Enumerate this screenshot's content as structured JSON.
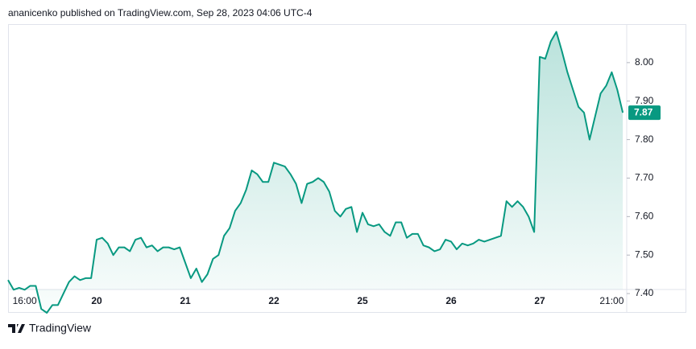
{
  "header": {
    "title": "ananicenko published on TradingView.com, Sep 28, 2023 04:06 UTC-4"
  },
  "footer": {
    "brand": "TradingView"
  },
  "chart_data": {
    "type": "area",
    "categories": [
      null,
      null,
      null,
      "16:00",
      null,
      null,
      null,
      null,
      null,
      null,
      null,
      null,
      null,
      null,
      null,
      null,
      "20",
      null,
      null,
      null,
      null,
      null,
      null,
      null,
      null,
      null,
      null,
      null,
      null,
      null,
      null,
      null,
      "21",
      null,
      null,
      null,
      null,
      null,
      null,
      null,
      null,
      null,
      null,
      null,
      null,
      null,
      null,
      null,
      "22",
      null,
      null,
      null,
      null,
      null,
      null,
      null,
      null,
      null,
      null,
      null,
      null,
      null,
      null,
      null,
      "25",
      null,
      null,
      null,
      null,
      null,
      null,
      null,
      null,
      null,
      null,
      null,
      null,
      null,
      null,
      null,
      "26",
      null,
      null,
      null,
      null,
      null,
      null,
      null,
      null,
      null,
      null,
      null,
      null,
      null,
      null,
      null,
      "27",
      null,
      null,
      null,
      null,
      null,
      null,
      null,
      null,
      null,
      null,
      null,
      null,
      "21:00",
      null,
      null
    ],
    "series": [
      {
        "color": "#089981",
        "values": [
          7.435,
          7.41,
          7.415,
          7.41,
          7.42,
          7.42,
          7.36,
          7.35,
          7.37,
          7.37,
          7.4,
          7.43,
          7.445,
          7.435,
          7.44,
          7.44,
          7.54,
          7.545,
          7.53,
          7.5,
          7.52,
          7.52,
          7.51,
          7.54,
          7.545,
          7.52,
          7.525,
          7.51,
          7.52,
          7.52,
          7.515,
          7.52,
          7.48,
          7.44,
          7.465,
          7.43,
          7.45,
          7.49,
          7.5,
          7.55,
          7.57,
          7.615,
          7.635,
          7.67,
          7.72,
          7.71,
          7.69,
          7.69,
          7.74,
          7.735,
          7.73,
          7.71,
          7.685,
          7.635,
          7.685,
          7.69,
          7.7,
          7.69,
          7.665,
          7.615,
          7.6,
          7.62,
          7.625,
          7.56,
          7.61,
          7.58,
          7.575,
          7.58,
          7.56,
          7.55,
          7.585,
          7.585,
          7.545,
          7.555,
          7.555,
          7.525,
          7.52,
          7.51,
          7.515,
          7.54,
          7.535,
          7.515,
          7.53,
          7.525,
          7.53,
          7.54,
          7.535,
          7.54,
          7.545,
          7.55,
          7.64,
          7.625,
          7.64,
          7.625,
          7.6,
          7.56,
          8.015,
          8.01,
          8.055,
          8.08,
          8.03,
          7.975,
          7.93,
          7.885,
          7.87,
          7.8,
          7.86,
          7.92,
          7.94,
          7.975,
          7.93,
          7.87
        ]
      }
    ],
    "ylim": [
      7.35,
      8.1
    ],
    "yticks": [
      {
        "value": 7.4,
        "label": "7.40"
      },
      {
        "value": 7.5,
        "label": "7.50"
      },
      {
        "value": 7.6,
        "label": "7.60"
      },
      {
        "value": 7.7,
        "label": "7.70"
      },
      {
        "value": 7.8,
        "label": "7.80"
      },
      {
        "value": 7.9,
        "label": "7.90"
      },
      {
        "value": 8.0,
        "label": "8.00"
      }
    ]
  }
}
